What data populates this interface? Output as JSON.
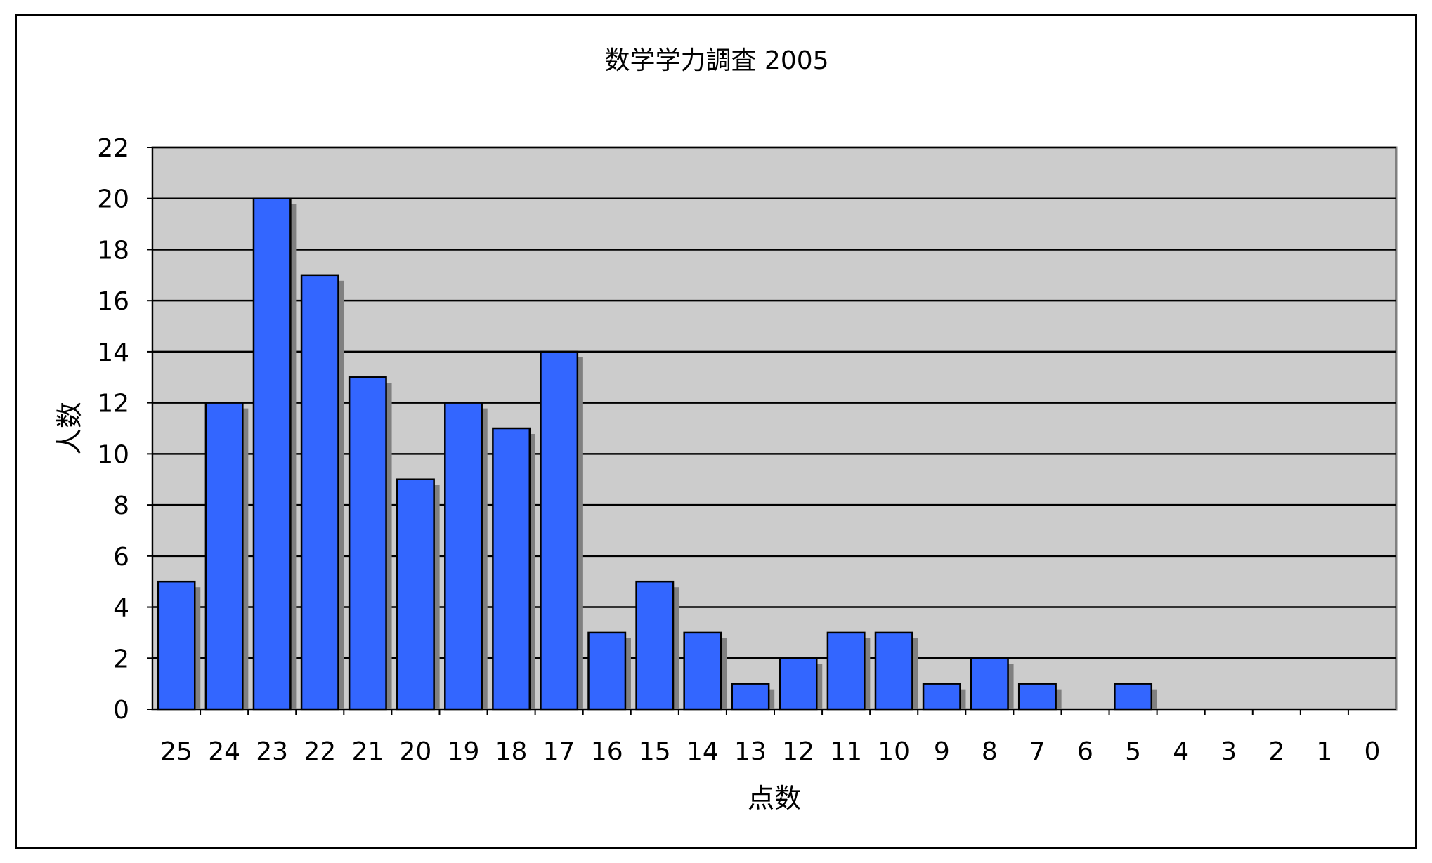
{
  "chart_data": {
    "type": "bar",
    "title": "数学学力調査 2005",
    "xlabel": "点数",
    "ylabel": "人数",
    "categories": [
      "25",
      "24",
      "23",
      "22",
      "21",
      "20",
      "19",
      "18",
      "17",
      "16",
      "15",
      "14",
      "13",
      "12",
      "11",
      "10",
      "9",
      "8",
      "7",
      "6",
      "5",
      "4",
      "3",
      "2",
      "1",
      "0"
    ],
    "values": [
      5,
      12,
      20,
      17,
      13,
      9,
      12,
      11,
      14,
      3,
      5,
      3,
      1,
      2,
      3,
      3,
      1,
      2,
      1,
      0,
      1,
      0,
      0,
      0,
      0,
      0
    ],
    "ylim": [
      0,
      22
    ],
    "yticks": [
      "0",
      "2",
      "4",
      "6",
      "8",
      "10",
      "12",
      "14",
      "16",
      "18",
      "20",
      "22"
    ],
    "grid": true,
    "legend": "none",
    "colors": {
      "bar": "#3366FF",
      "bar_outline": "#000000",
      "bar_shadow": "#808080",
      "plot_background": "#CCCCCC",
      "gridline": "#000000"
    }
  }
}
